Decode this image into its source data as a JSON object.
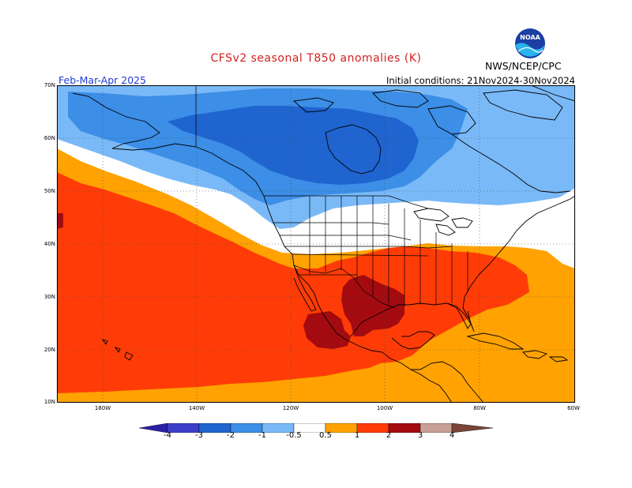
{
  "header": {
    "title": "CFSv2 seasonal T850 anomalies (K)",
    "season": "Feb-Mar-Apr 2025",
    "initial_conditions": "Initial conditions: 21Nov2024-30Nov2024",
    "agency": "NWS/NCEP/CPC",
    "logo_text": "NOAA"
  },
  "axes": {
    "lat_labels": [
      "70N",
      "60N",
      "50N",
      "40N",
      "30N",
      "20N",
      "10N"
    ],
    "lon_labels": [
      "180W",
      "140W",
      "120W",
      "100W",
      "80W",
      "60W"
    ]
  },
  "colorbar": {
    "labels": [
      "-4",
      "-3",
      "-2",
      "-1",
      "-0.5",
      "0.5",
      "1",
      "2",
      "3",
      "4"
    ],
    "colors": {
      "lt_m4": "#2b1fa8",
      "m4_m3": "#3d3ec7",
      "m3_m2": "#1f64cf",
      "m2_m1": "#3c8ee6",
      "m1_m05": "#7ab9f7",
      "neutral": "#ffffff",
      "p05_p1": "#ffa202",
      "p1_p2": "#ff3c07",
      "p2_p3": "#a30b10",
      "p3_p4": "#c9a096",
      "gt_p4": "#7a4436"
    }
  }
}
